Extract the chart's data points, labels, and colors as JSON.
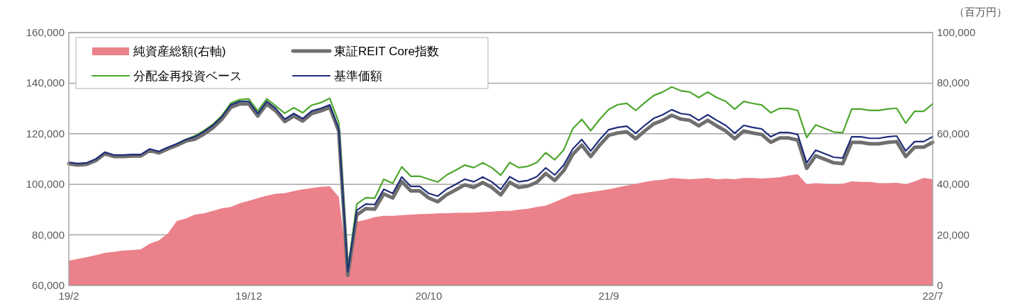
{
  "chart_data": {
    "type": "line",
    "categories": [
      "19/2",
      null,
      null,
      null,
      null,
      null,
      null,
      null,
      null,
      null,
      null,
      null,
      null,
      null,
      null,
      null,
      null,
      null,
      null,
      null,
      "19/12",
      null,
      null,
      null,
      null,
      null,
      null,
      null,
      null,
      null,
      null,
      null,
      null,
      null,
      null,
      null,
      null,
      null,
      null,
      null,
      "20/10",
      null,
      null,
      null,
      null,
      null,
      null,
      null,
      null,
      null,
      null,
      null,
      null,
      null,
      null,
      null,
      null,
      null,
      null,
      null,
      "21/9",
      null,
      null,
      null,
      null,
      null,
      null,
      null,
      null,
      null,
      null,
      null,
      null,
      null,
      null,
      null,
      null,
      null,
      null,
      null,
      null,
      null,
      null,
      null,
      null,
      null,
      null,
      null,
      null,
      null,
      null,
      null,
      null,
      null,
      null,
      null,
      "22/7"
    ],
    "series": [
      {
        "name": "純資産総額(右軸)",
        "type": "area",
        "axis": "y2",
        "color": "#eb818a",
        "values": [
          9800,
          10500,
          11200,
          12000,
          12900,
          13300,
          13800,
          14000,
          14300,
          16500,
          17800,
          20500,
          25500,
          26500,
          28000,
          28500,
          29500,
          30500,
          31000,
          32500,
          33500,
          34500,
          35500,
          36300,
          36500,
          37300,
          38000,
          38500,
          39000,
          39200,
          35000,
          6000,
          25200,
          26000,
          27000,
          27500,
          27500,
          27800,
          28000,
          28200,
          28300,
          28500,
          28600,
          28700,
          28800,
          28800,
          29000,
          29200,
          29500,
          29500,
          30000,
          30300,
          31000,
          31600,
          33000,
          34500,
          36000,
          36400,
          37000,
          37500,
          38000,
          38800,
          39500,
          40200,
          40900,
          41500,
          41800,
          42500,
          42200,
          42000,
          42200,
          42500,
          42000,
          42200,
          42000,
          42500,
          42500,
          42300,
          42500,
          42800,
          43500,
          44000,
          40000,
          40500,
          40200,
          40000,
          40200,
          41200,
          41000,
          41000,
          40500,
          40500,
          40600,
          40000,
          41200,
          42500,
          42000
        ]
      },
      {
        "name": "東証REIT Core指数",
        "type": "line",
        "color": "#6f6f6f",
        "values": [
          108100,
          107600,
          107900,
          109400,
          112100,
          111000,
          111000,
          111200,
          111200,
          113400,
          112400,
          114000,
          115400,
          117100,
          117800,
          119800,
          122300,
          125700,
          130400,
          131800,
          131800,
          127000,
          131800,
          129000,
          124800,
          127000,
          125000,
          128000,
          129000,
          130400,
          121000,
          64000,
          87900,
          90400,
          90200,
          96200,
          94600,
          101100,
          97400,
          97400,
          94600,
          93100,
          95900,
          97800,
          99800,
          98800,
          100700,
          98800,
          95800,
          100800,
          98800,
          99300,
          100800,
          104300,
          101500,
          105400,
          111800,
          115500,
          111000,
          115500,
          119400,
          120300,
          120800,
          118000,
          121100,
          123900,
          125300,
          127300,
          125800,
          125300,
          123100,
          125300,
          123100,
          121100,
          118000,
          121100,
          120300,
          119700,
          116600,
          118300,
          118300,
          117500,
          106300,
          111300,
          109900,
          108500,
          108200,
          116600,
          116600,
          116000,
          116000,
          116600,
          116900,
          111000,
          114700,
          114700,
          116600
        ]
      },
      {
        "name": "分配金再投資ベース",
        "type": "line",
        "color": "#4ea72e",
        "values": [
          null,
          null,
          null,
          null,
          null,
          null,
          null,
          null,
          null,
          null,
          null,
          null,
          116000,
          117700,
          119200,
          121200,
          123700,
          127100,
          132100,
          133500,
          133800,
          129000,
          133800,
          131000,
          128100,
          130300,
          128300,
          131300,
          132300,
          134000,
          124500,
          66000,
          92200,
          94700,
          94500,
          102000,
          100400,
          106900,
          103200,
          103200,
          102000,
          100900,
          103700,
          105600,
          107600,
          106600,
          108500,
          106600,
          103600,
          108600,
          106600,
          107100,
          108600,
          112500,
          109700,
          113600,
          122000,
          125700,
          121200,
          125700,
          129600,
          131500,
          132000,
          129200,
          132300,
          135100,
          136500,
          138500,
          137000,
          136500,
          134300,
          136500,
          134300,
          132800,
          129700,
          132800,
          132000,
          131400,
          128300,
          130000,
          130000,
          129200,
          118500,
          123500,
          122100,
          120700,
          120400,
          129800,
          129800,
          129200,
          129200,
          129800,
          130100,
          124200,
          128900,
          128900,
          131800
        ]
      },
      {
        "name": "基準価額",
        "type": "line",
        "color": "#1f2d7a",
        "values": [
          108700,
          108200,
          108500,
          110000,
          112700,
          111600,
          111600,
          111800,
          111800,
          114000,
          113000,
          114600,
          116000,
          117700,
          118800,
          120800,
          123300,
          126700,
          131400,
          132800,
          132800,
          128000,
          132800,
          130000,
          125800,
          128000,
          126000,
          129000,
          130000,
          131400,
          122000,
          65500,
          89700,
          92200,
          92000,
          98000,
          96400,
          102900,
          99200,
          99200,
          96400,
          95300,
          98100,
          100000,
          102000,
          101000,
          102900,
          101000,
          98000,
          103000,
          101000,
          101500,
          103000,
          106500,
          103700,
          107600,
          114000,
          117700,
          113200,
          117700,
          121600,
          122500,
          123000,
          120200,
          123300,
          126100,
          127500,
          129500,
          128000,
          127500,
          125300,
          127500,
          125300,
          123300,
          120200,
          123300,
          122500,
          121900,
          118800,
          120500,
          120500,
          119700,
          108500,
          113500,
          112100,
          110700,
          110400,
          118800,
          118800,
          118200,
          118200,
          118800,
          119100,
          113200,
          116900,
          116900,
          118800
        ]
      }
    ],
    "ylim": [
      60000,
      160000
    ],
    "yticks": [
      {
        "value": 60000,
        "label": "60,000"
      },
      {
        "value": 80000,
        "label": "80,000"
      },
      {
        "value": 100000,
        "label": "100,000"
      },
      {
        "value": 120000,
        "label": "120,000"
      },
      {
        "value": 140000,
        "label": "140,000"
      },
      {
        "value": 160000,
        "label": "160,000"
      }
    ],
    "y2lim": [
      0,
      100000
    ],
    "y2ticks": [
      0,
      {
        "value": 20000,
        "label": "20,000"
      },
      {
        "value": 40000,
        "label": "40,000"
      },
      {
        "value": 60000,
        "label": "60,000"
      },
      {
        "value": 80000,
        "label": "80,000"
      },
      {
        "value": 100000,
        "label": "100,000"
      }
    ],
    "y2label": "（百万円）",
    "grid": "y",
    "legend": "top left"
  }
}
